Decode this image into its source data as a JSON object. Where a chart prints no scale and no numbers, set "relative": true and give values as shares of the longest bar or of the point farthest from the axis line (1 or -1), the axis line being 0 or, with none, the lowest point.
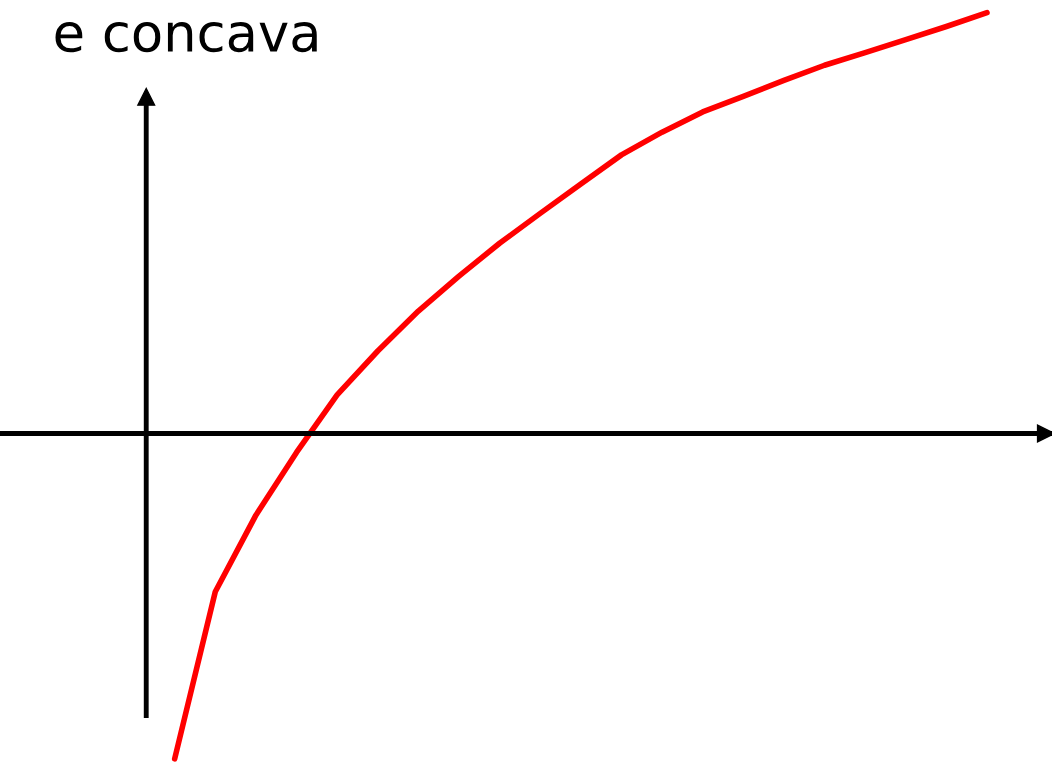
{
  "chart_data": {
    "type": "line",
    "title": "e concava",
    "relative": true,
    "categories": [
      null,
      null,
      null,
      null,
      null,
      null,
      null,
      null,
      null,
      null,
      null,
      null,
      null,
      null,
      null,
      null,
      null,
      null,
      null,
      null,
      null
    ],
    "series": [
      {
        "color": "#ff0000",
        "values": [
          -0.773,
          -0.376,
          -0.194,
          -0.045,
          0.092,
          0.196,
          0.291,
          0.374,
          0.452,
          0.523,
          0.593,
          0.662,
          0.716,
          0.764,
          0.801,
          0.839,
          0.875,
          0.905,
          0.936,
          0.967,
          1.0
        ]
      }
    ],
    "marker": "none",
    "line_style": "solid"
  }
}
